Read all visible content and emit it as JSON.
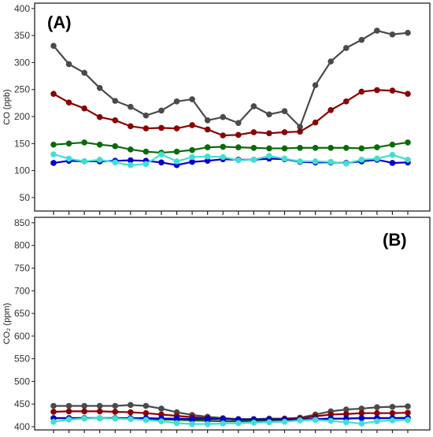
{
  "chart_data": [
    {
      "type": "line",
      "panel_label": "(A)",
      "ylabel": "CO (ppb)",
      "ylim": [
        25,
        410
      ],
      "yticks": [
        50,
        100,
        150,
        200,
        250,
        300,
        350,
        400
      ],
      "x_count": 24,
      "series": [
        {
          "color": "#4a4a4a",
          "values": [
            331,
            297,
            281,
            253,
            229,
            218,
            202,
            211,
            228,
            232,
            193,
            199,
            188,
            219,
            204,
            210,
            181,
            258,
            302,
            327,
            342,
            359,
            352,
            355
          ]
        },
        {
          "color": "#8b0000",
          "values": [
            242,
            226,
            215,
            199,
            193,
            182,
            178,
            179,
            178,
            184,
            176,
            165,
            166,
            171,
            169,
            171,
            172,
            189,
            212,
            228,
            246,
            249,
            248,
            242
          ]
        },
        {
          "color": "#0a6a0a",
          "values": [
            148,
            150,
            152,
            148,
            145,
            139,
            135,
            133,
            135,
            138,
            143,
            144,
            143,
            142,
            141,
            141,
            142,
            142,
            142,
            142,
            141,
            143,
            148,
            152
          ]
        },
        {
          "color": "#0000cc",
          "values": [
            114,
            118,
            117,
            117,
            118,
            119,
            118,
            115,
            110,
            116,
            118,
            121,
            120,
            120,
            122,
            121,
            116,
            115,
            115,
            114,
            117,
            120,
            114,
            115
          ]
        },
        {
          "color": "#40e0d0",
          "values": [
            130,
            122,
            117,
            120,
            115,
            110,
            112,
            130,
            117,
            125,
            126,
            125,
            119,
            120,
            127,
            122,
            117,
            117,
            116,
            113,
            120,
            122,
            129,
            120
          ]
        }
      ]
    },
    {
      "type": "line",
      "panel_label": "(B)",
      "ylabel": "CO₂ (ppm)",
      "ylim": [
        393,
        862
      ],
      "yticks": [
        400,
        450,
        500,
        550,
        600,
        650,
        700,
        750,
        800,
        850
      ],
      "x_count": 24,
      "series": [
        {
          "color": "#4a4a4a",
          "values": [
            446,
            446,
            446,
            446,
            446,
            448,
            446,
            440,
            432,
            426,
            422,
            419,
            417,
            417,
            418,
            418,
            420,
            427,
            434,
            438,
            440,
            443,
            444,
            445
          ]
        },
        {
          "color": "#8b0000",
          "values": [
            433,
            434,
            434,
            434,
            433,
            432,
            430,
            427,
            424,
            421,
            419,
            417,
            416,
            416,
            416,
            417,
            418,
            423,
            427,
            428,
            430,
            430,
            430,
            431
          ]
        },
        {
          "color": "#0a6a0a",
          "values": [
            419,
            419,
            419,
            419,
            419,
            418,
            417,
            416,
            415,
            414,
            413,
            412,
            412,
            413,
            414,
            415,
            416,
            417,
            418,
            418,
            419,
            419,
            419,
            420
          ]
        },
        {
          "color": "#0000cc",
          "values": [
            419,
            419,
            419,
            419,
            419,
            419,
            419,
            418,
            418,
            417,
            417,
            417,
            416,
            416,
            416,
            416,
            416,
            417,
            418,
            418,
            419,
            419,
            419,
            419
          ]
        },
        {
          "color": "#40e0d0",
          "values": [
            411,
            416,
            418,
            419,
            418,
            417,
            415,
            412,
            408,
            406,
            406,
            407,
            408,
            409,
            410,
            411,
            414,
            415,
            413,
            410,
            407,
            412,
            414,
            415
          ]
        }
      ]
    }
  ]
}
